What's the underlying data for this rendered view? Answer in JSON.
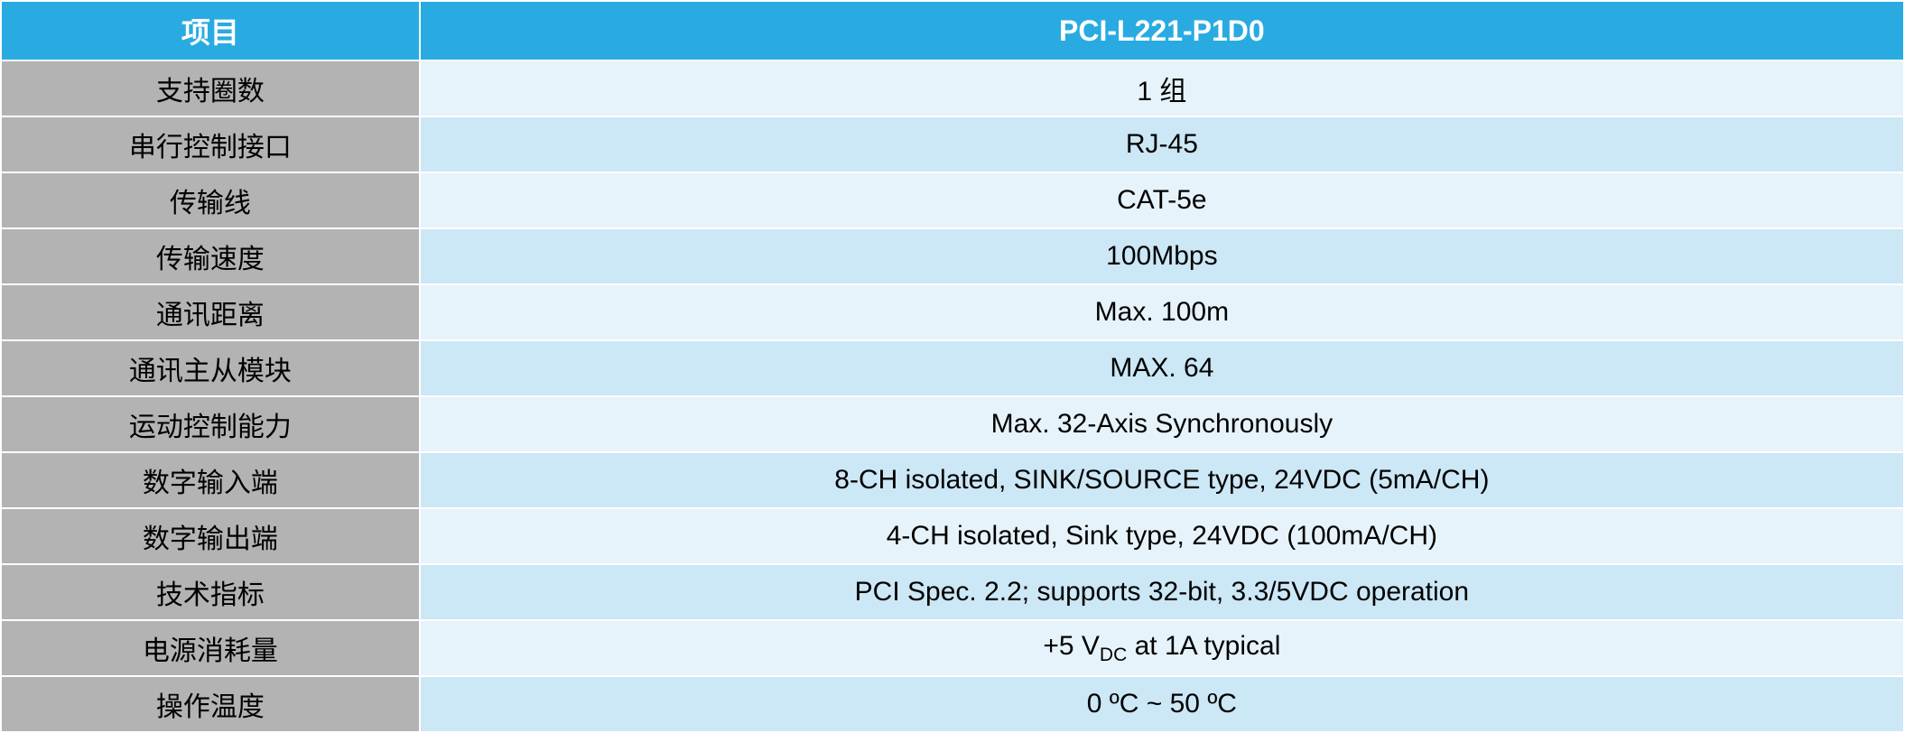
{
  "table": {
    "col_widths": [
      "22%",
      "78%"
    ],
    "header_row_height": 66,
    "body_row_height": 62,
    "header_bg": "#29abe2",
    "header_fg": "#ffffff",
    "label_bg": "#b3b3b3",
    "label_fg": "#000000",
    "value_bg_odd": "#e6f3fa",
    "value_bg_even": "#cce7f5",
    "value_fg": "#000000",
    "border_color": "#ffffff",
    "header_fontsize": 32,
    "body_fontsize": 30,
    "headers": [
      "项目",
      "PCI-L221-P1D0"
    ],
    "rows": [
      {
        "label": "支持圈数",
        "value": "1 组"
      },
      {
        "label": "串行控制接口",
        "value": "RJ-45"
      },
      {
        "label": "传输线",
        "value": "CAT-5e"
      },
      {
        "label": "传输速度",
        "value": "100Mbps"
      },
      {
        "label": "通讯距离",
        "value": "Max. 100m"
      },
      {
        "label": "通讯主从模块",
        "value": "MAX. 64"
      },
      {
        "label": "运动控制能力",
        "value": "Max. 32-Axis Synchronously"
      },
      {
        "label": "数字输入端",
        "value": "8-CH isolated, SINK/SOURCE type, 24VDC (5mA/CH)"
      },
      {
        "label": "数字输出端",
        "value": "4-CH isolated, Sink type, 24VDC (100mA/CH)"
      },
      {
        "label": "技术指标",
        "value": "PCI Spec. 2.2; supports 32-bit, 3.3/5VDC operation"
      },
      {
        "label": "电源消耗量",
        "value_html": "+5 V<span class=\"sub\">DC</span> at 1A typical"
      },
      {
        "label": "操作温度",
        "value_html": "0 ºC ~ 50 ºC"
      }
    ]
  }
}
